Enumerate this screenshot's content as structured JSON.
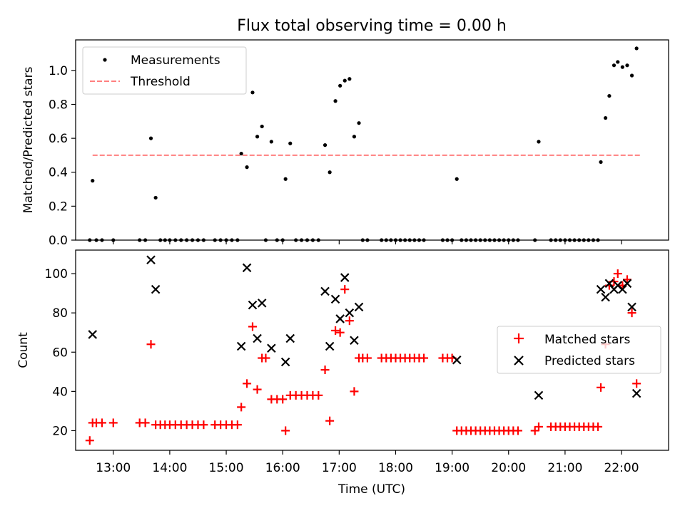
{
  "title": "Flux total observing time = 0.00 h",
  "colors": {
    "measurements": "#000000",
    "threshold": "#ff7f7f",
    "matched": "#ff0000",
    "predicted": "#000000"
  },
  "chart_data": [
    {
      "type": "scatter",
      "ylabel": "Matched/Predicted stars",
      "xlim": [
        "12:20",
        "22:50"
      ],
      "ylim": [
        0,
        1.18
      ],
      "yticks": [
        0.0,
        0.2,
        0.4,
        0.6,
        0.8,
        1.0
      ],
      "yticklabels": [
        "0.0",
        "0.2",
        "0.4",
        "0.6",
        "0.8",
        "1.0"
      ],
      "legend_position": "upper-left",
      "threshold": {
        "name": "Threshold",
        "value": 0.5,
        "x_range": [
          "12:38",
          "22:20"
        ]
      },
      "series": [
        {
          "name": "Measurements",
          "marker": "dot",
          "points": [
            [
              "12:35",
              0
            ],
            [
              "12:38",
              0.35
            ],
            [
              "12:42",
              0
            ],
            [
              "12:48",
              0
            ],
            [
              "13:00",
              0
            ],
            [
              "13:28",
              0
            ],
            [
              "13:34",
              0
            ],
            [
              "13:40",
              0.6
            ],
            [
              "13:45",
              0.25
            ],
            [
              "13:50",
              0
            ],
            [
              "13:55",
              0
            ],
            [
              "14:00",
              0
            ],
            [
              "14:06",
              0
            ],
            [
              "14:12",
              0
            ],
            [
              "14:18",
              0
            ],
            [
              "14:24",
              0
            ],
            [
              "14:30",
              0
            ],
            [
              "14:36",
              0
            ],
            [
              "14:48",
              0
            ],
            [
              "14:54",
              0
            ],
            [
              "15:00",
              0
            ],
            [
              "15:06",
              0
            ],
            [
              "15:12",
              0
            ],
            [
              "15:16",
              0.51
            ],
            [
              "15:22",
              0.43
            ],
            [
              "15:28",
              0.87
            ],
            [
              "15:33",
              0.61
            ],
            [
              "15:38",
              0.67
            ],
            [
              "15:42",
              0
            ],
            [
              "15:48",
              0.58
            ],
            [
              "15:54",
              0
            ],
            [
              "16:00",
              0
            ],
            [
              "16:03",
              0.36
            ],
            [
              "16:08",
              0.57
            ],
            [
              "16:14",
              0
            ],
            [
              "16:20",
              0
            ],
            [
              "16:26",
              0
            ],
            [
              "16:32",
              0
            ],
            [
              "16:38",
              0
            ],
            [
              "16:45",
              0.56
            ],
            [
              "16:50",
              0.4
            ],
            [
              "16:56",
              0.82
            ],
            [
              "17:01",
              0.91
            ],
            [
              "17:06",
              0.94
            ],
            [
              "17:11",
              0.95
            ],
            [
              "17:16",
              0.61
            ],
            [
              "17:21",
              0.69
            ],
            [
              "17:25",
              0
            ],
            [
              "17:30",
              0
            ],
            [
              "17:45",
              0
            ],
            [
              "17:50",
              0
            ],
            [
              "17:55",
              0
            ],
            [
              "18:00",
              0
            ],
            [
              "18:05",
              0
            ],
            [
              "18:10",
              0
            ],
            [
              "18:15",
              0
            ],
            [
              "18:20",
              0
            ],
            [
              "18:25",
              0
            ],
            [
              "18:30",
              0
            ],
            [
              "18:50",
              0
            ],
            [
              "18:55",
              0
            ],
            [
              "19:00",
              0
            ],
            [
              "19:05",
              0.36
            ],
            [
              "19:10",
              0
            ],
            [
              "19:15",
              0
            ],
            [
              "19:20",
              0
            ],
            [
              "19:25",
              0
            ],
            [
              "19:30",
              0
            ],
            [
              "19:35",
              0
            ],
            [
              "19:40",
              0
            ],
            [
              "19:45",
              0
            ],
            [
              "19:50",
              0
            ],
            [
              "19:55",
              0
            ],
            [
              "20:00",
              0
            ],
            [
              "20:05",
              0
            ],
            [
              "20:10",
              0
            ],
            [
              "20:28",
              0
            ],
            [
              "20:32",
              0.58
            ],
            [
              "20:45",
              0
            ],
            [
              "20:50",
              0
            ],
            [
              "20:55",
              0
            ],
            [
              "21:00",
              0
            ],
            [
              "21:05",
              0
            ],
            [
              "21:10",
              0
            ],
            [
              "21:15",
              0
            ],
            [
              "21:20",
              0
            ],
            [
              "21:25",
              0
            ],
            [
              "21:30",
              0
            ],
            [
              "21:35",
              0
            ],
            [
              "21:38",
              0.46
            ],
            [
              "21:43",
              0.72
            ],
            [
              "21:47",
              0.85
            ],
            [
              "21:52",
              1.03
            ],
            [
              "21:56",
              1.05
            ],
            [
              "22:01",
              1.02
            ],
            [
              "22:06",
              1.03
            ],
            [
              "22:11",
              0.97
            ],
            [
              "22:16",
              1.13
            ]
          ]
        }
      ]
    },
    {
      "type": "scatter",
      "ylabel": "Count",
      "xlabel": "Time (UTC)",
      "xlim": [
        "12:20",
        "22:50"
      ],
      "ylim": [
        10,
        112
      ],
      "xticks": [
        "13:00",
        "14:00",
        "15:00",
        "16:00",
        "17:00",
        "18:00",
        "19:00",
        "20:00",
        "21:00",
        "22:00"
      ],
      "yticks": [
        20,
        40,
        60,
        80,
        100
      ],
      "yticklabels": [
        "20",
        "40",
        "60",
        "80",
        "100"
      ],
      "legend_position": "center-right",
      "series": [
        {
          "name": "Matched stars",
          "marker": "plus",
          "points": [
            [
              "12:35",
              15
            ],
            [
              "12:38",
              24
            ],
            [
              "12:42",
              24
            ],
            [
              "12:48",
              24
            ],
            [
              "13:00",
              24
            ],
            [
              "13:28",
              24
            ],
            [
              "13:34",
              24
            ],
            [
              "13:40",
              64
            ],
            [
              "13:45",
              23
            ],
            [
              "13:50",
              23
            ],
            [
              "13:55",
              23
            ],
            [
              "14:00",
              23
            ],
            [
              "14:06",
              23
            ],
            [
              "14:12",
              23
            ],
            [
              "14:18",
              23
            ],
            [
              "14:24",
              23
            ],
            [
              "14:30",
              23
            ],
            [
              "14:36",
              23
            ],
            [
              "14:48",
              23
            ],
            [
              "14:54",
              23
            ],
            [
              "15:00",
              23
            ],
            [
              "15:06",
              23
            ],
            [
              "15:12",
              23
            ],
            [
              "15:16",
              32
            ],
            [
              "15:22",
              44
            ],
            [
              "15:28",
              73
            ],
            [
              "15:33",
              41
            ],
            [
              "15:38",
              57
            ],
            [
              "15:42",
              57
            ],
            [
              "15:48",
              36
            ],
            [
              "15:54",
              36
            ],
            [
              "16:00",
              36
            ],
            [
              "16:03",
              20
            ],
            [
              "16:08",
              38
            ],
            [
              "16:14",
              38
            ],
            [
              "16:20",
              38
            ],
            [
              "16:26",
              38
            ],
            [
              "16:32",
              38
            ],
            [
              "16:38",
              38
            ],
            [
              "16:45",
              51
            ],
            [
              "16:50",
              25
            ],
            [
              "16:56",
              71
            ],
            [
              "17:01",
              70
            ],
            [
              "17:06",
              92
            ],
            [
              "17:11",
              76
            ],
            [
              "17:16",
              40
            ],
            [
              "17:21",
              57
            ],
            [
              "17:25",
              57
            ],
            [
              "17:30",
              57
            ],
            [
              "17:45",
              57
            ],
            [
              "17:50",
              57
            ],
            [
              "17:55",
              57
            ],
            [
              "18:00",
              57
            ],
            [
              "18:05",
              57
            ],
            [
              "18:10",
              57
            ],
            [
              "18:15",
              57
            ],
            [
              "18:20",
              57
            ],
            [
              "18:25",
              57
            ],
            [
              "18:30",
              57
            ],
            [
              "18:50",
              57
            ],
            [
              "18:55",
              57
            ],
            [
              "19:00",
              57
            ],
            [
              "19:05",
              20
            ],
            [
              "19:10",
              20
            ],
            [
              "19:15",
              20
            ],
            [
              "19:20",
              20
            ],
            [
              "19:25",
              20
            ],
            [
              "19:30",
              20
            ],
            [
              "19:35",
              20
            ],
            [
              "19:40",
              20
            ],
            [
              "19:45",
              20
            ],
            [
              "19:50",
              20
            ],
            [
              "19:55",
              20
            ],
            [
              "20:00",
              20
            ],
            [
              "20:05",
              20
            ],
            [
              "20:10",
              20
            ],
            [
              "20:28",
              20
            ],
            [
              "20:32",
              22
            ],
            [
              "20:45",
              22
            ],
            [
              "20:50",
              22
            ],
            [
              "20:55",
              22
            ],
            [
              "21:00",
              22
            ],
            [
              "21:05",
              22
            ],
            [
              "21:10",
              22
            ],
            [
              "21:15",
              22
            ],
            [
              "21:20",
              22
            ],
            [
              "21:25",
              22
            ],
            [
              "21:30",
              22
            ],
            [
              "21:35",
              22
            ],
            [
              "21:38",
              42
            ],
            [
              "21:43",
              64
            ],
            [
              "21:47",
              94
            ],
            [
              "21:52",
              96
            ],
            [
              "21:56",
              100
            ],
            [
              "22:01",
              94
            ],
            [
              "22:06",
              97
            ],
            [
              "22:11",
              80
            ],
            [
              "22:16",
              44
            ]
          ]
        },
        {
          "name": "Predicted stars",
          "marker": "x",
          "points": [
            [
              "12:38",
              69
            ],
            [
              "13:40",
              107
            ],
            [
              "13:45",
              92
            ],
            [
              "15:16",
              63
            ],
            [
              "15:22",
              103
            ],
            [
              "15:28",
              84
            ],
            [
              "15:33",
              67
            ],
            [
              "15:38",
              85
            ],
            [
              "15:48",
              62
            ],
            [
              "16:03",
              55
            ],
            [
              "16:08",
              67
            ],
            [
              "16:45",
              91
            ],
            [
              "16:50",
              63
            ],
            [
              "16:56",
              87
            ],
            [
              "17:01",
              77
            ],
            [
              "17:06",
              98
            ],
            [
              "17:11",
              80
            ],
            [
              "17:16",
              66
            ],
            [
              "17:21",
              83
            ],
            [
              "19:05",
              56
            ],
            [
              "20:32",
              38
            ],
            [
              "21:38",
              92
            ],
            [
              "21:43",
              88
            ],
            [
              "21:47",
              95
            ],
            [
              "21:52",
              92
            ],
            [
              "21:56",
              94
            ],
            [
              "22:01",
              92
            ],
            [
              "22:06",
              95
            ],
            [
              "22:11",
              83
            ],
            [
              "22:16",
              39
            ]
          ]
        }
      ]
    }
  ]
}
